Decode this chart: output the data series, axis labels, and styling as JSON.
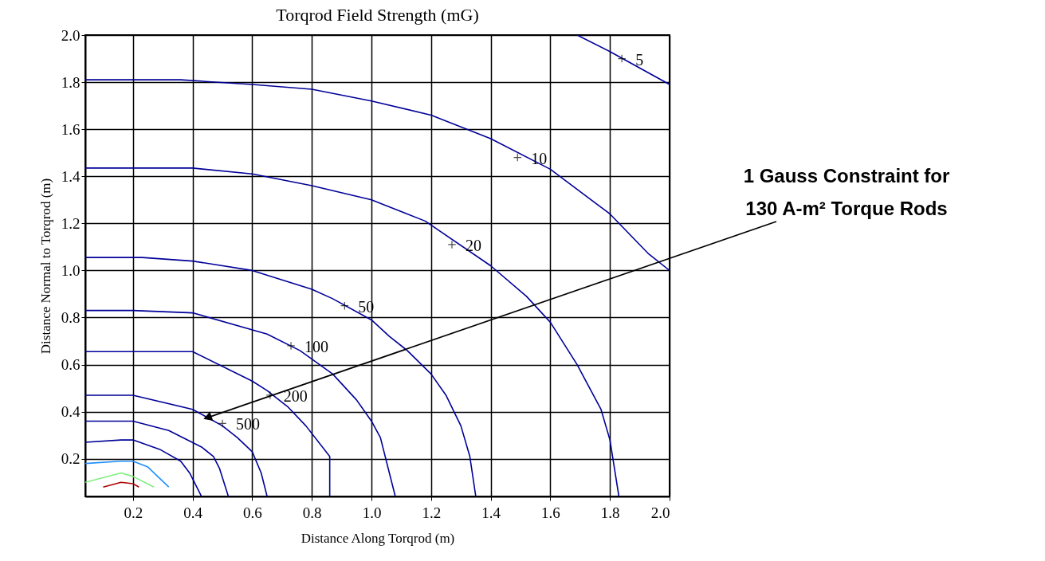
{
  "chart_data": {
    "type": "line",
    "title": "Torqrod Field Strength (mG)",
    "xlabel": "Distance Along Torqrod (m)",
    "ylabel": "Distance Normal to Torqrod (m)",
    "xlim": [
      0.04,
      2.0
    ],
    "ylim": [
      0.04,
      2.0
    ],
    "xticks": [
      0.2,
      0.4,
      0.6,
      0.8,
      {
        "value": 1.0,
        "label": "1.0"
      },
      1.2,
      1.4,
      1.6,
      1.8,
      {
        "value": 2.0,
        "label": "2.0"
      }
    ],
    "yticks": [
      0.2,
      0.4,
      0.6,
      0.8,
      {
        "value": 1.0,
        "label": "1.0"
      },
      1.2,
      1.4,
      1.6,
      1.8,
      {
        "value": 2.0,
        "label": "2.0"
      }
    ],
    "grid": true,
    "line_style": "solid",
    "marker": "none",
    "series": [
      {
        "color": "#000099",
        "x": [
          1.69,
          1.8,
          2.0
        ],
        "values": [
          2.0,
          1.93,
          1.79
        ]
      },
      {
        "color": "#000099",
        "x": [
          0.04,
          0.36,
          0.6,
          0.8,
          1.0,
          1.2,
          1.4,
          1.6,
          1.8,
          1.93,
          2.0
        ],
        "values": [
          1.81,
          1.81,
          1.79,
          1.77,
          1.72,
          1.66,
          1.56,
          1.43,
          1.24,
          1.07,
          1.0
        ]
      },
      {
        "color": "#000099",
        "x": [
          0.04,
          0.4,
          0.6,
          0.8,
          1.0,
          1.18,
          1.4,
          1.52,
          1.6,
          1.69,
          1.77,
          1.8,
          1.83
        ],
        "values": [
          1.435,
          1.435,
          1.41,
          1.36,
          1.3,
          1.21,
          1.02,
          0.89,
          0.78,
          0.6,
          0.41,
          0.28,
          0.04
        ]
      },
      {
        "color": "#000099",
        "x": [
          0.04,
          0.23,
          0.4,
          0.6,
          0.8,
          0.87,
          1.0,
          1.06,
          1.12,
          1.2,
          1.25,
          1.3,
          1.33,
          1.35
        ],
        "values": [
          1.055,
          1.055,
          1.04,
          1.0,
          0.92,
          0.88,
          0.79,
          0.72,
          0.66,
          0.56,
          0.47,
          0.34,
          0.21,
          0.04
        ]
      },
      {
        "color": "#000099",
        "x": [
          0.04,
          0.2,
          0.4,
          0.65,
          0.76,
          0.87,
          0.95,
          1.0,
          1.03,
          1.06,
          1.08
        ],
        "values": [
          0.83,
          0.83,
          0.82,
          0.73,
          0.66,
          0.56,
          0.45,
          0.36,
          0.29,
          0.14,
          0.04
        ]
      },
      {
        "color": "#000099",
        "x": [
          0.04,
          0.4,
          0.6,
          0.65,
          0.72,
          0.78,
          0.86,
          0.86
        ],
        "values": [
          0.655,
          0.655,
          0.53,
          0.49,
          0.42,
          0.34,
          0.21,
          0.04
        ]
      },
      {
        "color": "#000099",
        "x": [
          0.04,
          0.2,
          0.4,
          0.5,
          0.55,
          0.6,
          0.63,
          0.65
        ],
        "values": [
          0.47,
          0.47,
          0.41,
          0.34,
          0.29,
          0.23,
          0.14,
          0.04
        ]
      },
      {
        "color": "#000099",
        "x": [
          0.04,
          0.2,
          0.32,
          0.43,
          0.47,
          0.49,
          0.52
        ],
        "values": [
          0.36,
          0.36,
          0.32,
          0.25,
          0.21,
          0.16,
          0.04
        ]
      },
      {
        "color": "#000099",
        "x": [
          0.04,
          0.16,
          0.2,
          0.29,
          0.36,
          0.39,
          0.43
        ],
        "values": [
          0.27,
          0.28,
          0.28,
          0.24,
          0.19,
          0.14,
          0.04
        ]
      },
      {
        "color": "#1e8fff",
        "x": [
          0.04,
          0.16,
          0.2,
          0.25,
          0.32
        ],
        "values": [
          0.18,
          0.19,
          0.19,
          0.165,
          0.08
        ]
      },
      {
        "color": "#7fef7f",
        "x": [
          0.04,
          0.16,
          0.2,
          0.27
        ],
        "values": [
          0.1,
          0.14,
          0.125,
          0.08
        ]
      },
      {
        "color": "#b00000",
        "x": [
          0.1,
          0.16,
          0.2,
          0.22
        ],
        "values": [
          0.08,
          0.1,
          0.094,
          0.08
        ]
      }
    ],
    "annotations": [
      {
        "text": "5",
        "x": 1.84,
        "y": 1.9
      },
      {
        "text": "10",
        "x": 1.49,
        "y": 1.48
      },
      {
        "text": "20",
        "x": 1.27,
        "y": 1.11
      },
      {
        "text": "50",
        "x": 0.91,
        "y": 0.85
      },
      {
        "text": "100",
        "x": 0.73,
        "y": 0.68
      },
      {
        "text": "200",
        "x": 0.66,
        "y": 0.47
      },
      {
        "text": "500",
        "x": 0.5,
        "y": 0.35
      },
      {
        "text": "1 Gauss Constraint for\n130 A-m² Torque Rods",
        "x": 0.45,
        "y": 0.375
      }
    ]
  }
}
